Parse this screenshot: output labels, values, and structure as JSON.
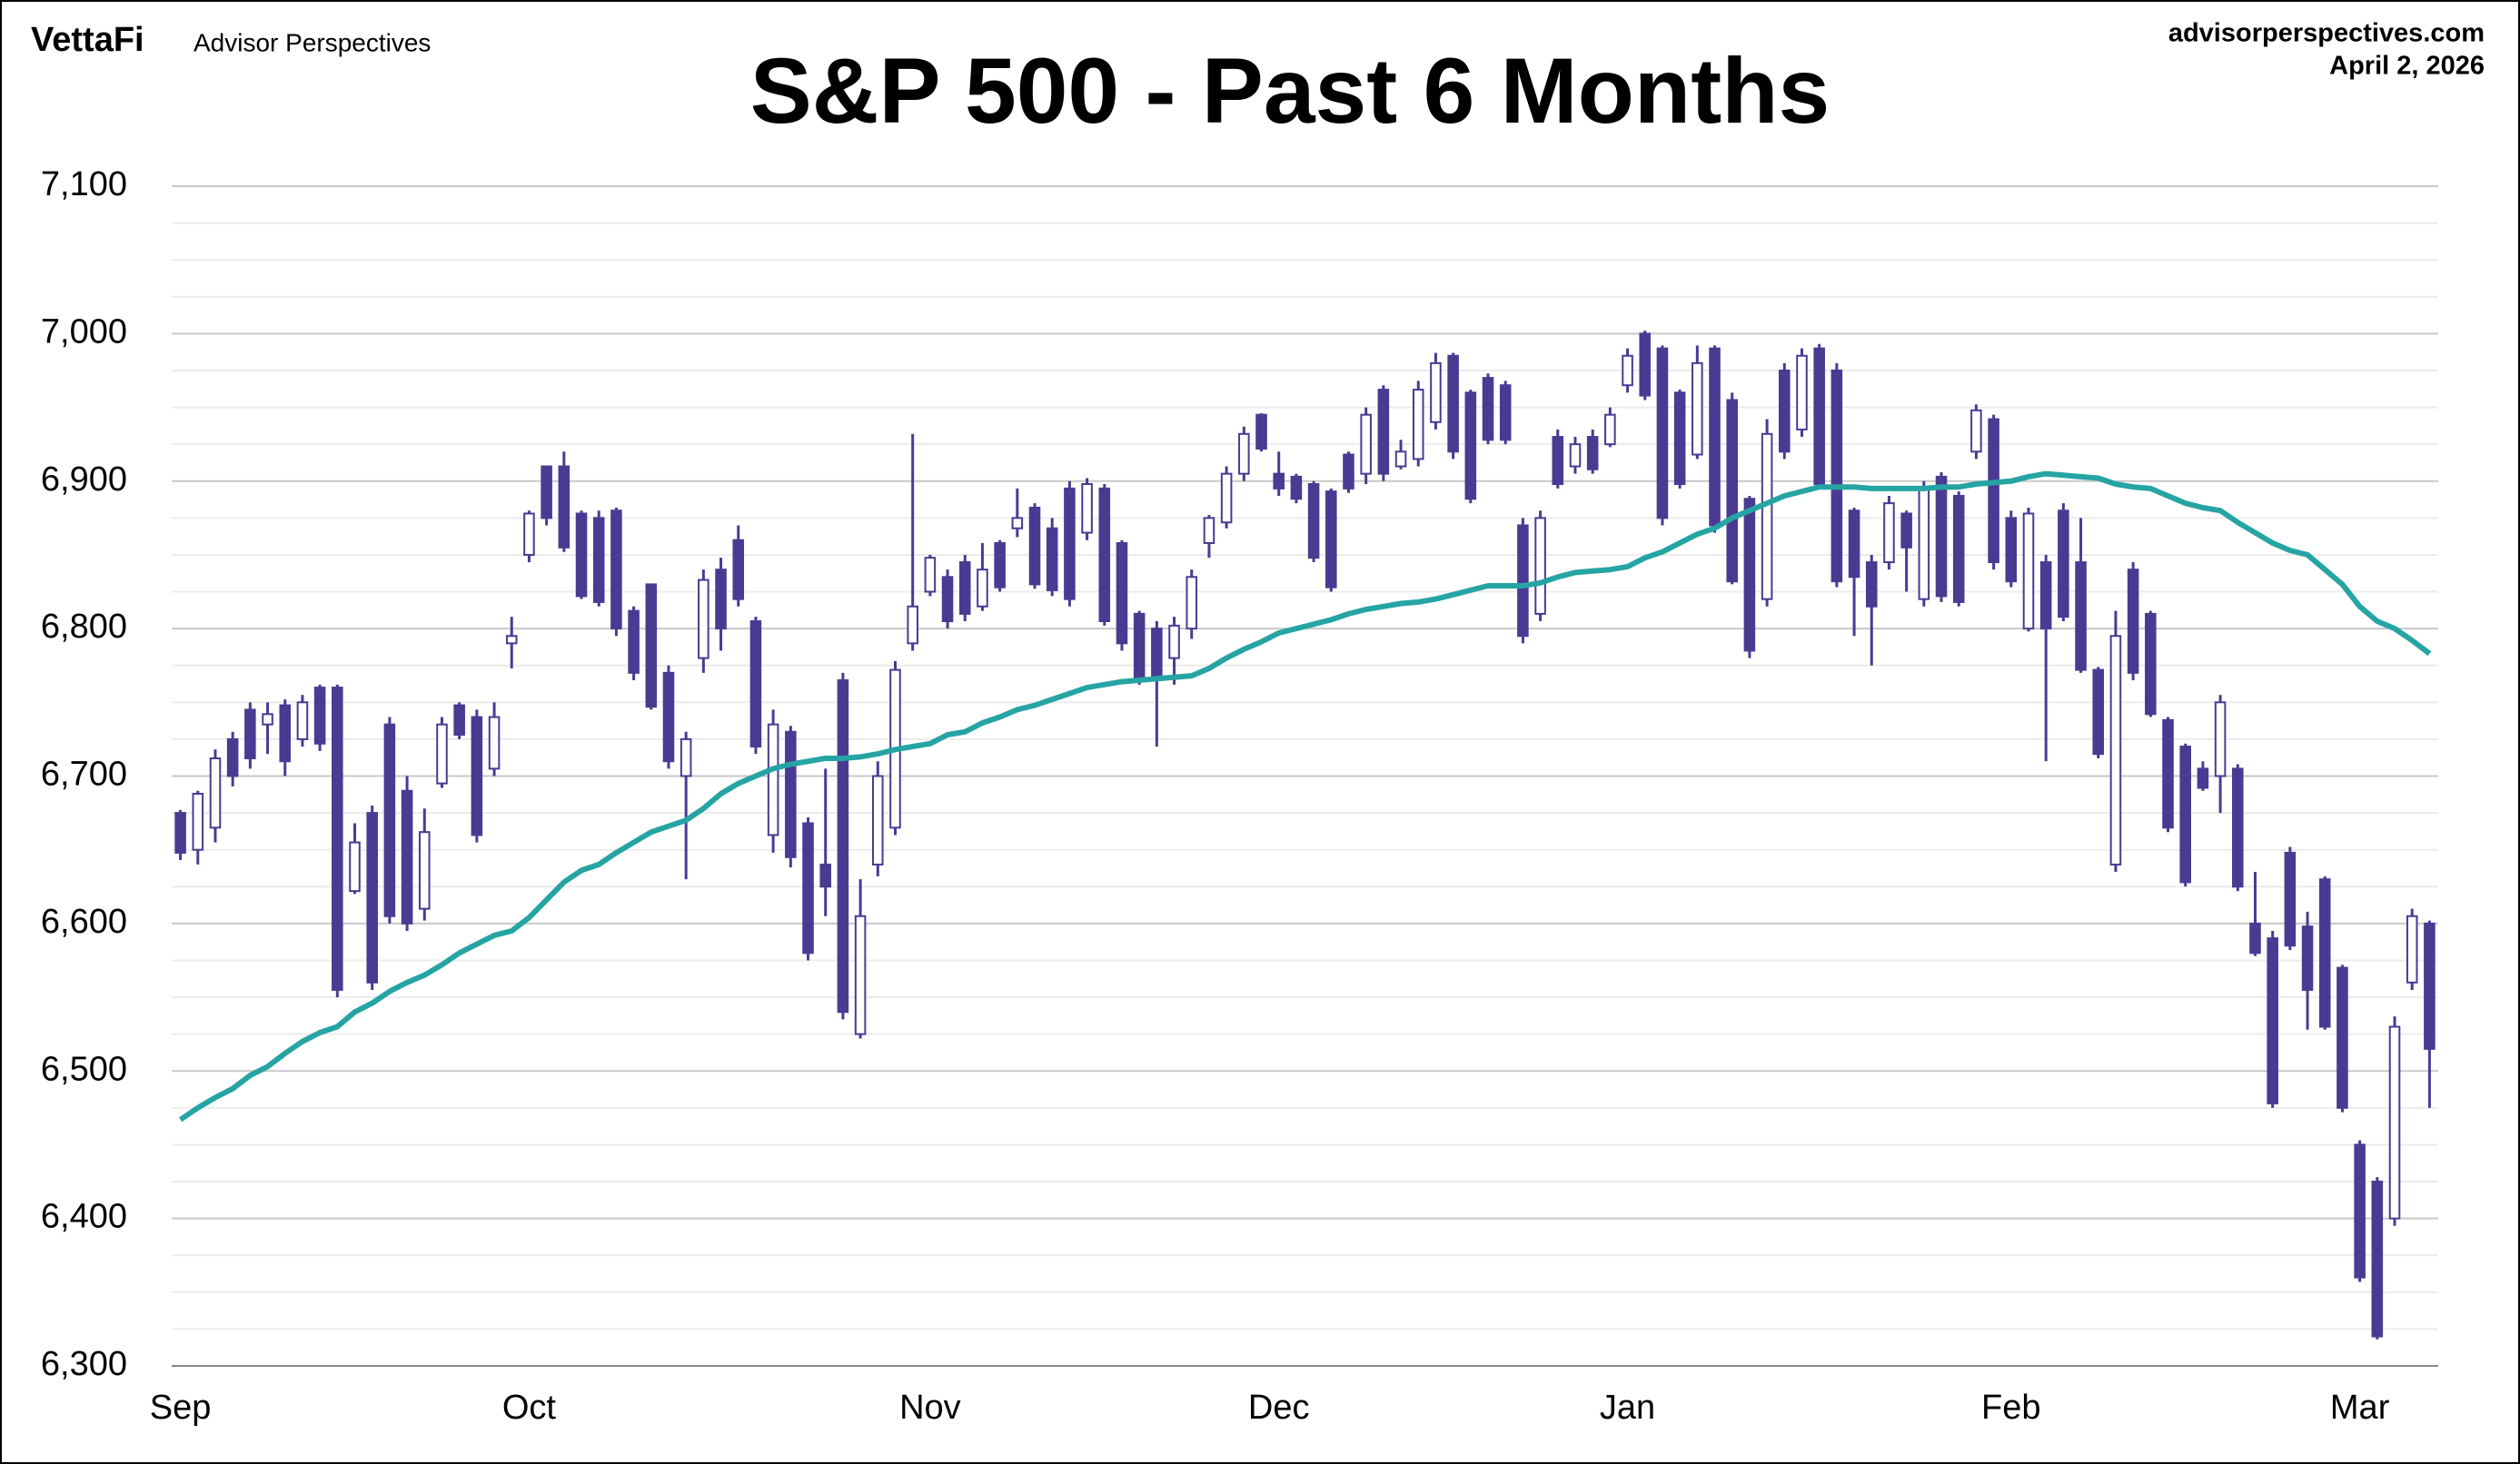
{
  "chart_data": {
    "type": "candlestick",
    "title": "S&P 500 - Past 6 Months",
    "brand": "VettaFi",
    "publisher": "Advisor Perspectives",
    "source": "advisorperspectives.com",
    "date": "April 2, 2026",
    "categories": [
      "Sep",
      null,
      null,
      null,
      null,
      null,
      null,
      null,
      null,
      null,
      null,
      null,
      null,
      null,
      null,
      null,
      null,
      null,
      null,
      null,
      "Oct",
      null,
      null,
      null,
      null,
      null,
      null,
      null,
      null,
      null,
      null,
      null,
      null,
      null,
      null,
      null,
      null,
      null,
      null,
      null,
      null,
      null,
      null,
      "Nov",
      null,
      null,
      null,
      null,
      null,
      null,
      null,
      null,
      null,
      null,
      null,
      null,
      null,
      null,
      null,
      null,
      null,
      null,
      null,
      "Dec",
      null,
      null,
      null,
      null,
      null,
      null,
      null,
      null,
      null,
      null,
      null,
      null,
      null,
      null,
      null,
      null,
      null,
      null,
      null,
      "Jan",
      null,
      null,
      null,
      null,
      null,
      null,
      null,
      null,
      null,
      null,
      null,
      null,
      null,
      null,
      null,
      null,
      null,
      null,
      null,
      null,
      null,
      "Feb",
      null,
      null,
      null,
      null,
      null,
      null,
      null,
      null,
      null,
      null,
      null,
      null,
      null,
      null,
      null,
      null,
      null,
      null,
      null,
      "Mar",
      null,
      null,
      null,
      null
    ],
    "open": [
      6675,
      6650,
      6665,
      6725,
      6745,
      6735,
      6748,
      6725,
      6760,
      6760,
      6622,
      6675,
      6735,
      6690,
      6610,
      6695,
      6748,
      6740,
      6705,
      6790,
      6850,
      6910,
      6910,
      6878,
      6875,
      6880,
      6812,
      6830,
      6770,
      6700,
      6780,
      6840,
      6860,
      6805,
      6660,
      6730,
      6668,
      6640,
      6765,
      6525,
      6640,
      6665,
      6790,
      6825,
      6835,
      6845,
      6815,
      6858,
      6868,
      6882,
      6868,
      6895,
      6865,
      6895,
      6858,
      6810,
      6800,
      6780,
      6800,
      6858,
      6872,
      6905,
      6945,
      6905,
      6903,
      6898,
      6893,
      6918,
      6905,
      6962,
      6910,
      6915,
      6940,
      6985,
      6960,
      6970,
      6965,
      6870,
      6810,
      6930,
      6910,
      6930,
      6925,
      6965,
      7000,
      6990,
      6960,
      6918,
      6990,
      6955,
      6888,
      6820,
      6975,
      6935,
      6990,
      6975,
      6880,
      6845,
      6845,
      6878,
      6820,
      6903,
      6890,
      6920,
      6942,
      6875,
      6800,
      6845,
      6880,
      6845,
      6772,
      6640,
      6840,
      6810,
      6738,
      6720,
      6705,
      6700,
      6705,
      6600,
      6590,
      6648,
      6598,
      6630,
      6570,
      6450,
      6425,
      6400,
      6560,
      6600
    ],
    "high": [
      6677,
      6690,
      6718,
      6730,
      6750,
      6750,
      6752,
      6755,
      6762,
      6762,
      6668,
      6680,
      6740,
      6700,
      6678,
      6740,
      6750,
      6745,
      6750,
      6808,
      6880,
      6910,
      6920,
      6880,
      6880,
      6882,
      6815,
      6830,
      6775,
      6730,
      6840,
      6848,
      6870,
      6808,
      6745,
      6734,
      6672,
      6705,
      6770,
      6630,
      6710,
      6778,
      6932,
      6850,
      6840,
      6850,
      6858,
      6860,
      6895,
      6885,
      6875,
      6900,
      6902,
      6898,
      6860,
      6812,
      6805,
      6808,
      6840,
      6877,
      6910,
      6937,
      6946,
      6920,
      6905,
      6900,
      6895,
      6920,
      6950,
      6965,
      6928,
      6968,
      6987,
      6987,
      6962,
      6973,
      6968,
      6875,
      6880,
      6935,
      6930,
      6935,
      6950,
      6990,
      7002,
      6992,
      6962,
      6992,
      6992,
      6960,
      6890,
      6942,
      6980,
      6990,
      6993,
      6980,
      6882,
      6850,
      6890,
      6880,
      6900,
      6906,
      6893,
      6952,
      6945,
      6880,
      6882,
      6850,
      6885,
      6875,
      6774,
      6812,
      6845,
      6812,
      6740,
      6722,
      6710,
      6755,
      6708,
      6635,
      6595,
      6652,
      6608,
      6632,
      6572,
      6453,
      6428,
      6537,
      6610,
      6602
    ],
    "low": [
      6643,
      6640,
      6655,
      6693,
      6705,
      6715,
      6700,
      6720,
      6717,
      6550,
      6620,
      6555,
      6600,
      6595,
      6602,
      6692,
      6725,
      6655,
      6700,
      6773,
      6845,
      6870,
      6852,
      6820,
      6815,
      6795,
      6765,
      6745,
      6705,
      6630,
      6770,
      6785,
      6815,
      6715,
      6648,
      6638,
      6575,
      6605,
      6535,
      6522,
      6632,
      6660,
      6785,
      6822,
      6800,
      6805,
      6812,
      6825,
      6862,
      6827,
      6822,
      6815,
      6860,
      6802,
      6785,
      6762,
      6720,
      6762,
      6793,
      6848,
      6868,
      6900,
      6920,
      6890,
      6885,
      6845,
      6825,
      6892,
      6898,
      6900,
      6908,
      6910,
      6935,
      6915,
      6885,
      6925,
      6925,
      6790,
      6805,
      6895,
      6905,
      6905,
      6923,
      6960,
      6955,
      6870,
      6895,
      6915,
      6865,
      6830,
      6780,
      6815,
      6915,
      6930,
      6895,
      6828,
      6795,
      6775,
      6840,
      6825,
      6815,
      6818,
      6815,
      6915,
      6840,
      6828,
      6798,
      6710,
      6805,
      6770,
      6712,
      6635,
      6765,
      6740,
      6662,
      6625,
      6690,
      6675,
      6622,
      6578,
      6475,
      6582,
      6528,
      6528,
      6472,
      6357,
      6318,
      6395,
      6555,
      6475
    ],
    "close": [
      6648,
      6688,
      6712,
      6700,
      6712,
      6742,
      6710,
      6750,
      6722,
      6555,
      6655,
      6560,
      6605,
      6600,
      6662,
      6735,
      6728,
      6660,
      6740,
      6795,
      6878,
      6875,
      6855,
      6822,
      6818,
      6800,
      6770,
      6747,
      6710,
      6725,
      6833,
      6800,
      6820,
      6720,
      6735,
      6645,
      6580,
      6625,
      6540,
      6605,
      6700,
      6772,
      6815,
      6848,
      6805,
      6810,
      6840,
      6828,
      6875,
      6830,
      6826,
      6820,
      6898,
      6805,
      6790,
      6765,
      6765,
      6802,
      6835,
      6875,
      6905,
      6932,
      6922,
      6895,
      6888,
      6848,
      6828,
      6895,
      6945,
      6905,
      6920,
      6962,
      6980,
      6920,
      6888,
      6928,
      6928,
      6795,
      6875,
      6898,
      6925,
      6908,
      6945,
      6985,
      6958,
      6875,
      6898,
      6980,
      6870,
      6832,
      6785,
      6932,
      6920,
      6985,
      6898,
      6832,
      6835,
      6815,
      6885,
      6855,
      6895,
      6822,
      6818,
      6948,
      6845,
      6832,
      6878,
      6800,
      6808,
      6772,
      6715,
      6795,
      6770,
      6742,
      6665,
      6628,
      6692,
      6750,
      6625,
      6580,
      6478,
      6585,
      6555,
      6530,
      6475,
      6360,
      6320,
      6530,
      6605,
      6515
    ],
    "moving_average": {
      "color": "#26a4a4",
      "values": [
        6467,
        6475,
        6482,
        6488,
        6497,
        6503,
        6512,
        6520,
        6526,
        6530,
        6540,
        6546,
        6554,
        6560,
        6565,
        6572,
        6580,
        6586,
        6592,
        6595,
        6604,
        6616,
        6628,
        6636,
        6640,
        6648,
        6655,
        6662,
        6666,
        6670,
        6678,
        6688,
        6695,
        6700,
        6705,
        6708,
        6710,
        6712,
        6712,
        6713,
        6715,
        6718,
        6720,
        6722,
        6728,
        6730,
        6736,
        6740,
        6745,
        6748,
        6752,
        6756,
        6760,
        6762,
        6764,
        6765,
        6766,
        6767,
        6768,
        6773,
        6780,
        6786,
        6791,
        6797,
        6800,
        6803,
        6806,
        6810,
        6813,
        6815,
        6817,
        6818,
        6820,
        6823,
        6826,
        6829,
        6829,
        6829,
        6831,
        6835,
        6838,
        6839,
        6840,
        6842,
        6848,
        6852,
        6858,
        6864,
        6868,
        6875,
        6880,
        6885,
        6890,
        6893,
        6896,
        6896,
        6896,
        6895,
        6895,
        6895,
        6895,
        6896,
        6896,
        6898,
        6899,
        6900,
        6903,
        6905,
        6904,
        6903,
        6902,
        6898,
        6896,
        6895,
        6890,
        6885,
        6882,
        6880,
        6872,
        6865,
        6858,
        6853,
        6850,
        6840,
        6830,
        6815,
        6805,
        6800,
        6792,
        6783
      ]
    },
    "colors": {
      "down": "#4b3a92",
      "up": "#ffffff",
      "outline": "#4b3a92"
    },
    "ylim": [
      6300,
      7100
    ],
    "yticks": [
      {
        "value": 6300,
        "label": "6,300"
      },
      {
        "value": 6400,
        "label": "6,400"
      },
      {
        "value": 6500,
        "label": "6,500"
      },
      {
        "value": 6600,
        "label": "6,600"
      },
      {
        "value": 6700,
        "label": "6,700"
      },
      {
        "value": 6800,
        "label": "6,800"
      },
      {
        "value": 6900,
        "label": "6,900"
      },
      {
        "value": 7000,
        "label": "7,000"
      },
      {
        "value": 7100,
        "label": "7,100"
      }
    ],
    "minor_yticks": [
      6325,
      6350,
      6375,
      6425,
      6450,
      6475,
      6525,
      6550,
      6575,
      6625,
      6650,
      6675,
      6725,
      6750,
      6775,
      6825,
      6850,
      6875,
      6925,
      6950,
      6975,
      7025,
      7050,
      7075
    ],
    "grid": true
  }
}
